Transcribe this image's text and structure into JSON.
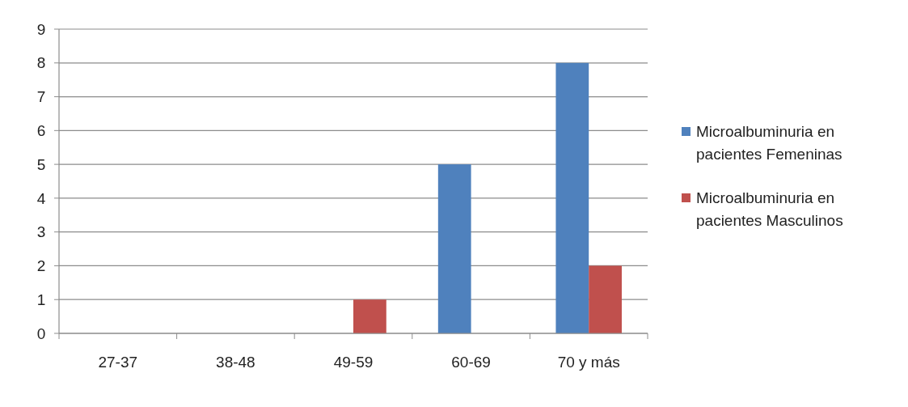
{
  "chart_data": {
    "type": "bar",
    "categories": [
      "27-37",
      "38-48",
      "49-59",
      "60-69",
      "70 y más"
    ],
    "series": [
      {
        "name": "Microalbuminuria en pacientes Femeninas",
        "color": "#4f81bd",
        "values": [
          0,
          0,
          0,
          5,
          8
        ]
      },
      {
        "name": "Microalbuminuria en pacientes Masculinos",
        "color": "#c0504d",
        "values": [
          0,
          0,
          1,
          0,
          2
        ]
      }
    ],
    "ylim": [
      0,
      9
    ],
    "yticks": [
      0,
      1,
      2,
      3,
      4,
      5,
      6,
      7,
      8,
      9
    ],
    "grid": "y",
    "legend": "right"
  }
}
